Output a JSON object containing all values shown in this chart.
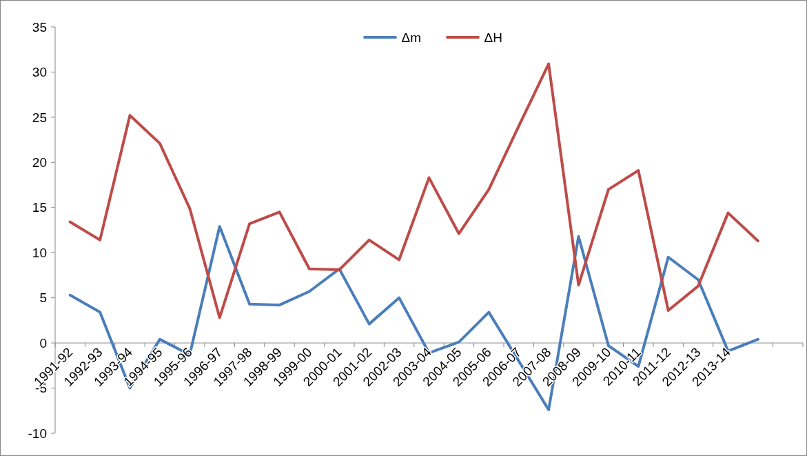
{
  "chart_data": {
    "type": "line",
    "categories": [
      "1991-92",
      "1992-93",
      "1993-94",
      "1994-95",
      "1995-96",
      "1996-97",
      "1997-98",
      "1998-99",
      "1999-00",
      "2000-01",
      "2001-02",
      "2002-03",
      "2003-04",
      "2004-05",
      "2005-06",
      "2006-07",
      "2007-08",
      "2008-09",
      "2009-10",
      "2010-11",
      "2011-12",
      "2012-13",
      "2013-14",
      null,
      null
    ],
    "series": [
      {
        "name": "Δm",
        "color": "#4a7ebb",
        "values": [
          5.3,
          3.4,
          -5.0,
          0.4,
          -1.3,
          12.9,
          4.3,
          4.2,
          5.7,
          8.2,
          2.1,
          5.0,
          -1.1,
          0.1,
          3.4,
          -2.0,
          -7.4,
          11.8,
          -0.3,
          -2.6,
          9.5,
          7.0,
          -0.9,
          0.4,
          null
        ]
      },
      {
        "name": "ΔH",
        "color": "#be4b48",
        "values": [
          13.4,
          11.4,
          25.2,
          22.1,
          14.9,
          2.8,
          13.2,
          14.5,
          8.2,
          8.1,
          11.4,
          9.2,
          18.3,
          12.1,
          17.0,
          24.0,
          30.9,
          6.4,
          17.0,
          19.1,
          3.6,
          6.3,
          14.4,
          11.3,
          null
        ]
      }
    ],
    "ylim": [
      -10,
      35
    ],
    "yticks": [
      -10,
      -5,
      0,
      5,
      10,
      15,
      20,
      25,
      30,
      35
    ],
    "grid": false,
    "legend": "top",
    "line_style": "solid"
  }
}
